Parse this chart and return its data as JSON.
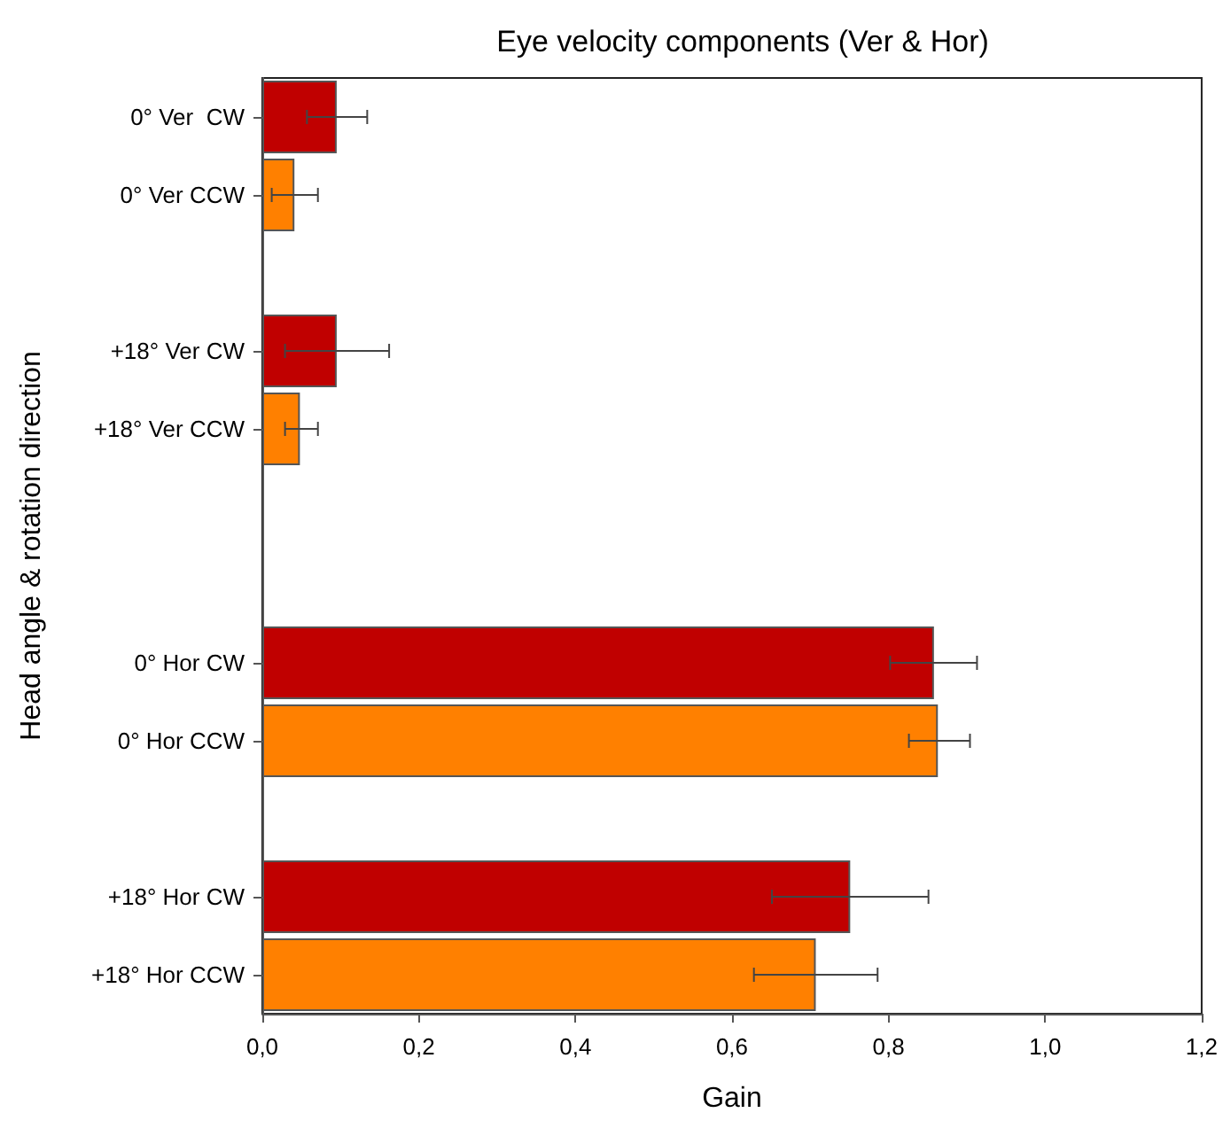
{
  "chart_data": {
    "type": "bar",
    "orientation": "horizontal",
    "title": "Eye velocity components (Ver & Hor)",
    "xlabel": "Gain",
    "ylabel": "Head angle & rotation direction",
    "categories": [
      "0° Ver  CW",
      "0° Ver CCW",
      null,
      "+18° Ver CW",
      "+18° Ver CCW",
      null,
      null,
      "0° Hor CW",
      "0° Hor CCW",
      null,
      "+18° Hor CW",
      "+18° Hor CCW"
    ],
    "values": [
      0.095,
      0.041,
      null,
      0.095,
      0.048,
      null,
      null,
      0.858,
      0.863,
      null,
      0.751,
      0.707
    ],
    "errors": [
      [
        0.057,
        0.134
      ],
      [
        0.012,
        0.071
      ],
      null,
      [
        0.029,
        0.162
      ],
      [
        0.029,
        0.071
      ],
      null,
      null,
      [
        0.802,
        0.913
      ],
      [
        0.826,
        0.904
      ],
      null,
      [
        0.651,
        0.851
      ],
      [
        0.628,
        0.786
      ]
    ],
    "colors": [
      "#c00000",
      "#ff8000",
      null,
      "#c00000",
      "#ff8000",
      null,
      null,
      "#c00000",
      "#ff8000",
      null,
      "#c00000",
      "#ff8000"
    ],
    "xlim": [
      0,
      1.2
    ],
    "xticks": [
      {
        "value": 0,
        "label": "0,0"
      },
      {
        "value": 0.2,
        "label": "0,2"
      },
      {
        "value": 0.4,
        "label": "0,4"
      },
      {
        "value": 0.6,
        "label": "0,6"
      },
      {
        "value": 0.8,
        "label": "0,8"
      },
      {
        "value": 1,
        "label": "1,0"
      },
      {
        "value": 1.2,
        "label": "1,2"
      }
    ],
    "grid": false
  }
}
